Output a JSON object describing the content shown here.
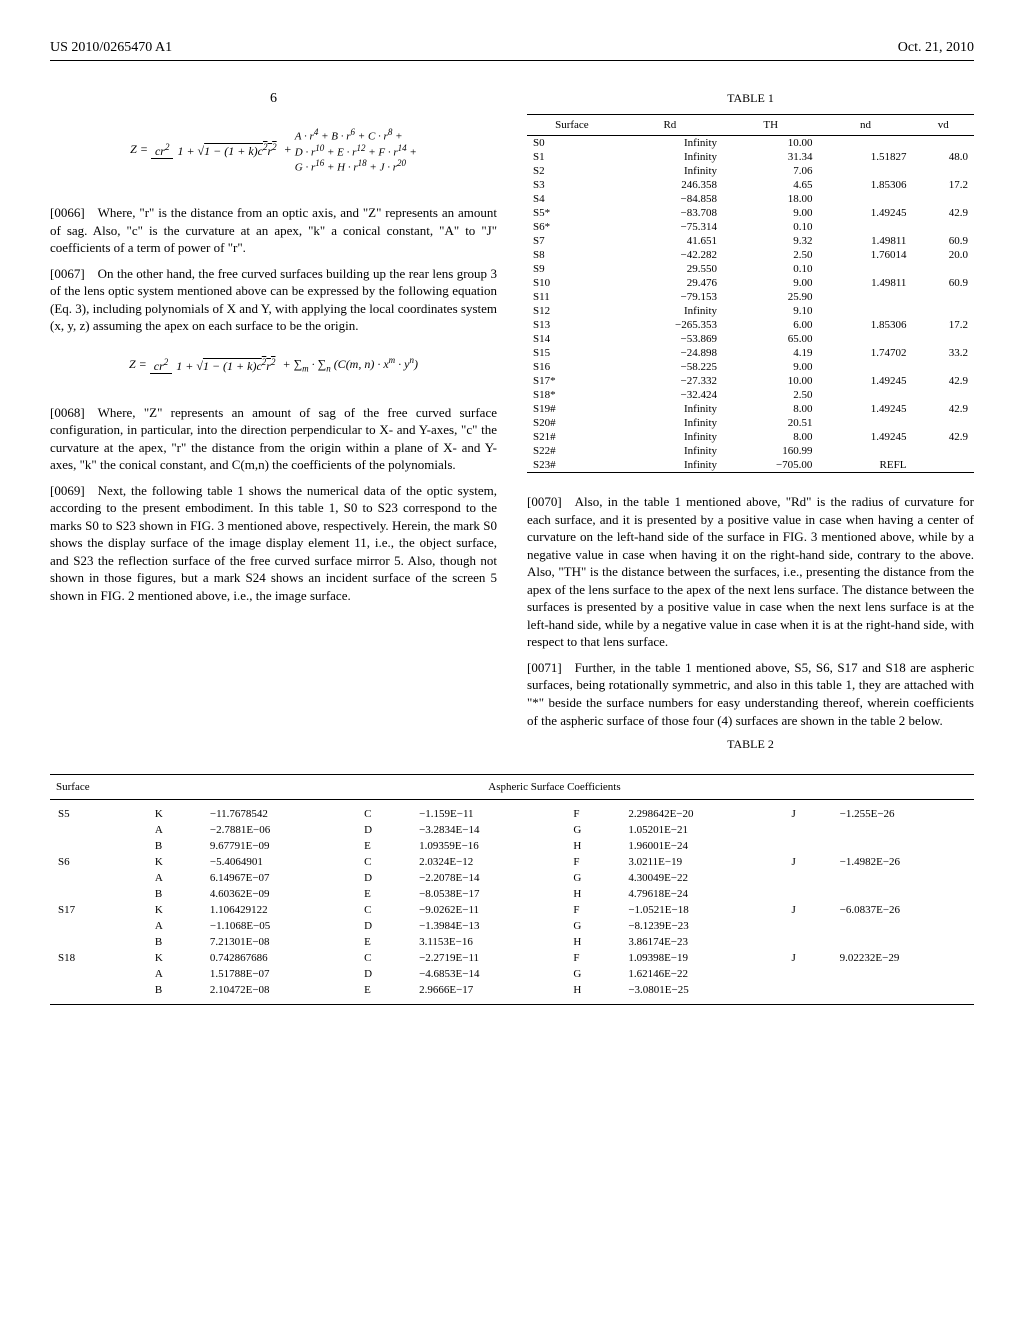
{
  "header": {
    "doc_number": "US 2010/0265470 A1",
    "date": "Oct. 21, 2010"
  },
  "page_number": "6",
  "equations": {
    "eq1_html": "Z = <span class='frac'><span class='num'>cr<sup>2</sup></span><span class='den'>1 + √<span class='sqrt'>1 − (1 + k)c<sup>2</sup>r<sup>2</sup></span></span></span> + <span style='display:inline-block;text-align:left;vertical-align:middle;font-size:11px'>A · r<sup>4</sup> + B · r<sup>6</sup> + C · r<sup>8</sup> +<br>D · r<sup>10</sup> + E · r<sup>12</sup> + F · r<sup>14</sup> +<br>G · r<sup>16</sup> + H · r<sup>18</sup> + J · r<sup>20</sup></span>",
    "eq2_html": "Z = <span class='frac'><span class='num'>cr<sup>2</sup></span><span class='den'>1 + √<span class='sqrt'>1 − (1 + k)c<sup>2</sup>r<sup>2</sup></span></span></span> + ∑<sub>m</sub> · ∑<sub>n</sub> (C(m, n) · x<sup>m</sup> · y<sup>n</sup>)"
  },
  "paragraphs": {
    "p66": "[0066] Where, \"r\" is the distance from an optic axis, and \"Z\" represents an amount of sag. Also, \"c\" is the curvature at an apex, \"k\" a conical constant, \"A\" to \"J\" coefficients of a term of power of \"r\".",
    "p67": "[0067] On the other hand, the free curved surfaces building up the rear lens group 3 of the lens optic system mentioned above can be expressed by the following equation (Eq. 3), including polynomials of X and Y, with applying the local coordinates system (x, y, z) assuming the apex on each surface to be the origin.",
    "p68": "[0068] Where, \"Z\" represents an amount of sag of the free curved surface configuration, in particular, into the direction perpendicular to X- and Y-axes, \"c\" the curvature at the apex, \"r\" the distance from the origin within a plane of X- and Y-axes, \"k\" the conical constant, and C(m,n) the coefficients of the polynomials.",
    "p69": "[0069] Next, the following table 1 shows the numerical data of the optic system, according to the present embodiment. In this table 1, S0 to S23 correspond to the marks S0 to S23 shown in FIG. 3 mentioned above, respectively. Herein, the mark S0 shows the display surface of the image display element 11, i.e., the object surface, and S23 the reflection surface of the free curved surface mirror 5. Also, though not shown in those figures, but a mark S24 shows an incident surface of the screen 5 shown in FIG. 2 mentioned above, i.e., the image surface.",
    "p70": "[0070] Also, in the table 1 mentioned above, \"Rd\" is the radius of curvature for each surface, and it is presented by a positive value in case when having a center of curvature on the left-hand side of the surface in FIG. 3 mentioned above, while by a negative value in case when having it on the right-hand side, contrary to the above. Also, \"TH\" is the distance between the surfaces, i.e., presenting the distance from the apex of the lens surface to the apex of the next lens surface. The distance between the surfaces is presented by a positive value in case when the next lens surface is at the left-hand side, while by a negative value in case when it is at the right-hand side, with respect to that lens surface.",
    "p71": "[0071] Further, in the table 1 mentioned above, S5, S6, S17 and S18 are aspheric surfaces, being rotationally symmetric, and also in this table 1, they are attached with \"*\" beside the surface numbers for easy understanding thereof, wherein coefficients of the aspheric surface of those four (4) surfaces are shown in the table 2 below."
  },
  "table1": {
    "title": "TABLE 1",
    "headers": [
      "Surface",
      "Rd",
      "TH",
      "nd",
      "vd"
    ],
    "rows": [
      [
        "S0",
        "Infinity",
        "10.00",
        "",
        ""
      ],
      [
        "S1",
        "Infinity",
        "31.34",
        "1.51827",
        "48.0"
      ],
      [
        "S2",
        "Infinity",
        "7.06",
        "",
        ""
      ],
      [
        "S3",
        "246.358",
        "4.65",
        "1.85306",
        "17.2"
      ],
      [
        "S4",
        "−84.858",
        "18.00",
        "",
        ""
      ],
      [
        "S5*",
        "−83.708",
        "9.00",
        "1.49245",
        "42.9"
      ],
      [
        "S6*",
        "−75.314",
        "0.10",
        "",
        ""
      ],
      [
        "S7",
        "41.651",
        "9.32",
        "1.49811",
        "60.9"
      ],
      [
        "S8",
        "−42.282",
        "2.50",
        "1.76014",
        "20.0"
      ],
      [
        "S9",
        "29.550",
        "0.10",
        "",
        ""
      ],
      [
        "S10",
        "29.476",
        "9.00",
        "1.49811",
        "60.9"
      ],
      [
        "S11",
        "−79.153",
        "25.90",
        "",
        ""
      ],
      [
        "S12",
        "Infinity",
        "9.10",
        "",
        ""
      ],
      [
        "S13",
        "−265.353",
        "6.00",
        "1.85306",
        "17.2"
      ],
      [
        "S14",
        "−53.869",
        "65.00",
        "",
        ""
      ],
      [
        "S15",
        "−24.898",
        "4.19",
        "1.74702",
        "33.2"
      ],
      [
        "S16",
        "−58.225",
        "9.00",
        "",
        ""
      ],
      [
        "S17*",
        "−27.332",
        "10.00",
        "1.49245",
        "42.9"
      ],
      [
        "S18*",
        "−32.424",
        "2.50",
        "",
        ""
      ],
      [
        "S19#",
        "Infinity",
        "8.00",
        "1.49245",
        "42.9"
      ],
      [
        "S20#",
        "Infinity",
        "20.51",
        "",
        ""
      ],
      [
        "S21#",
        "Infinity",
        "8.00",
        "1.49245",
        "42.9"
      ],
      [
        "S22#",
        "Infinity",
        "160.99",
        "",
        ""
      ],
      [
        "S23#",
        "Infinity",
        "−705.00",
        "REFL",
        ""
      ]
    ]
  },
  "table2": {
    "title": "TABLE 2",
    "header_left": "Surface",
    "header_right": "Aspheric Surface Coefficients",
    "rows": [
      [
        "S5",
        "K",
        "−11.7678542",
        "C",
        "−1.159E−11",
        "F",
        "2.298642E−20",
        "J",
        "−1.255E−26"
      ],
      [
        "",
        "A",
        "−2.7881E−06",
        "D",
        "−3.2834E−14",
        "G",
        "1.05201E−21",
        "",
        ""
      ],
      [
        "",
        "B",
        "9.67791E−09",
        "E",
        "1.09359E−16",
        "H",
        "1.96001E−24",
        "",
        ""
      ],
      [
        "S6",
        "K",
        "−5.4064901",
        "C",
        "2.0324E−12",
        "F",
        "3.0211E−19",
        "J",
        "−1.4982E−26"
      ],
      [
        "",
        "A",
        "6.14967E−07",
        "D",
        "−2.2078E−14",
        "G",
        "4.30049E−22",
        "",
        ""
      ],
      [
        "",
        "B",
        "4.60362E−09",
        "E",
        "−8.0538E−17",
        "H",
        "4.79618E−24",
        "",
        ""
      ],
      [
        "S17",
        "K",
        "1.106429122",
        "C",
        "−9.0262E−11",
        "F",
        "−1.0521E−18",
        "J",
        "−6.0837E−26"
      ],
      [
        "",
        "A",
        "−1.1068E−05",
        "D",
        "−1.3984E−13",
        "G",
        "−8.1239E−23",
        "",
        ""
      ],
      [
        "",
        "B",
        "7.21301E−08",
        "E",
        "3.1153E−16",
        "H",
        "3.86174E−23",
        "",
        ""
      ],
      [
        "S18",
        "K",
        "0.742867686",
        "C",
        "−2.2719E−11",
        "F",
        "1.09398E−19",
        "J",
        "9.02232E−29"
      ],
      [
        "",
        "A",
        "1.51788E−07",
        "D",
        "−4.6853E−14",
        "G",
        "1.62146E−22",
        "",
        ""
      ],
      [
        "",
        "B",
        "2.10472E−08",
        "E",
        "2.9666E−17",
        "H",
        "−3.0801E−25",
        "",
        ""
      ]
    ]
  }
}
